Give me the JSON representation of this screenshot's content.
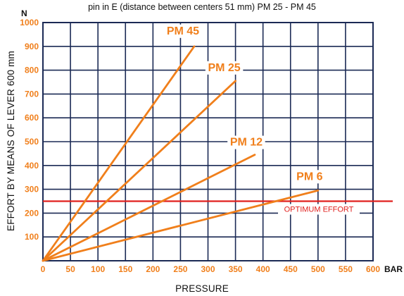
{
  "chart_data": {
    "type": "line",
    "title": "pin in E (distance between centers 51 mm) PM 25 - PM 45",
    "xlabel": "PRESSURE",
    "ylabel": "EFFORT BY MEANS OF LEVER 600 mm",
    "x_unit": "BAR",
    "y_unit": "N",
    "xlim": [
      0,
      600
    ],
    "ylim": [
      0,
      1000
    ],
    "x_ticks": [
      "0",
      "50",
      "100",
      "150",
      "200",
      "250",
      "300",
      "350",
      "400",
      "450",
      "500",
      "550",
      "600"
    ],
    "y_ticks": [
      "100",
      "200",
      "300",
      "400",
      "500",
      "600",
      "700",
      "800",
      "900",
      "1000"
    ],
    "grid": true,
    "series": [
      {
        "name": "PM 45",
        "x": [
          0,
          275
        ],
        "y": [
          0,
          900
        ]
      },
      {
        "name": "PM 25",
        "x": [
          0,
          350
        ],
        "y": [
          0,
          755
        ]
      },
      {
        "name": "PM 12",
        "x": [
          0,
          385
        ],
        "y": [
          0,
          445
        ]
      },
      {
        "name": "PM 6",
        "x": [
          0,
          500
        ],
        "y": [
          0,
          295
        ]
      }
    ],
    "reference_line": {
      "label": "OPTIMUM EFFORT",
      "y": 250
    },
    "colors": {
      "series": "#f07f1b",
      "reference": "#e0201e",
      "grid": "#1b2a55",
      "tick_labels": "#f07f1b"
    }
  }
}
